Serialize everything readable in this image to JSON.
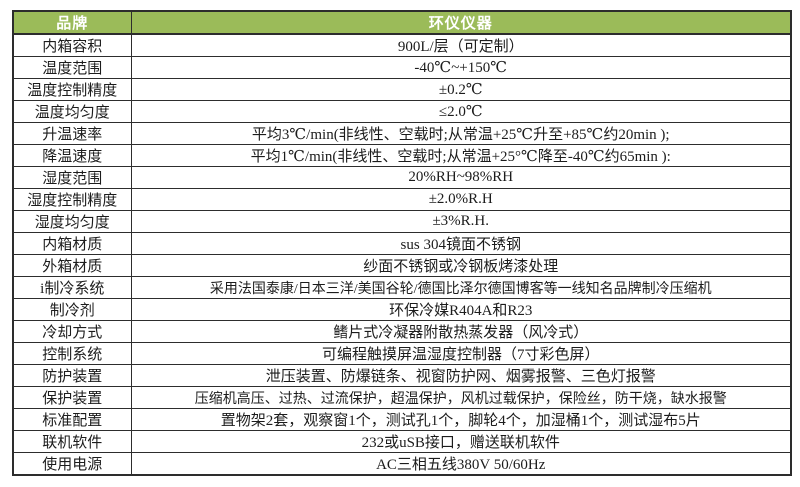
{
  "table": {
    "header": {
      "brand_label": "品牌",
      "brand_value": "环仪仪器"
    },
    "rows": [
      {
        "label": "内箱容积",
        "value": "900L/层（可定制）"
      },
      {
        "label": "温度范围",
        "value": "-40℃~+150℃"
      },
      {
        "label": "温度控制精度",
        "value": "±0.2℃"
      },
      {
        "label": "温度均匀度",
        "value": "≤2.0℃"
      },
      {
        "label": "升温速率",
        "value": "平均3℃/min(非线性、空载时;从常温+25℃升至+85℃约20min );"
      },
      {
        "label": "降温速度",
        "value": "平均1℃/min(非线性、空载时;从常温+25°℃降至-40℃约65min ):"
      },
      {
        "label": "湿度范围",
        "value": "20%RH~98%RH"
      },
      {
        "label": "湿度控制精度",
        "value": "±2.0%R.H"
      },
      {
        "label": "湿度均匀度",
        "value": "±3%R.H."
      },
      {
        "label": "内箱材质",
        "value": "sus 304镜面不锈钢"
      },
      {
        "label": "外箱材质",
        "value": "纱面不锈钢或冷钢板烤漆处理"
      },
      {
        "label": "i制冷系统",
        "value": "采用法国泰康/日本三洋/美国谷轮/德国比泽尔德国博客等一线知名品牌制冷压缩机"
      },
      {
        "label": "制冷剂",
        "value": "环保冷媒R404A和R23"
      },
      {
        "label": "冷却方式",
        "value": "鳍片式冷凝器附散热蒸发器（风冷式）"
      },
      {
        "label": "控制系统",
        "value": "可编程触摸屏温湿度控制器（7寸彩色屏）"
      },
      {
        "label": "防护装置",
        "value": "泄压装置、防爆链条、视窗防护网、烟雾报警、三色灯报警"
      },
      {
        "label": "保护装置",
        "value": "压缩机高压、过热、过流保护，超温保护，风机过载保护，保险丝，防干烧，缺水报警"
      },
      {
        "label": "标准配置",
        "value": "置物架2套，观察窗1个，测试孔1个，脚轮4个，加湿桶1个，测试湿布5片"
      },
      {
        "label": "联机软件",
        "value": "232或uSB接口，赠送联机软件"
      },
      {
        "label": "使用电源",
        "value": "AC三相五线380V 50/60Hz"
      }
    ],
    "colors": {
      "header_bg": "#9BBB59",
      "header_text": "#FFFFFF",
      "border": "#2D2D2D"
    }
  }
}
